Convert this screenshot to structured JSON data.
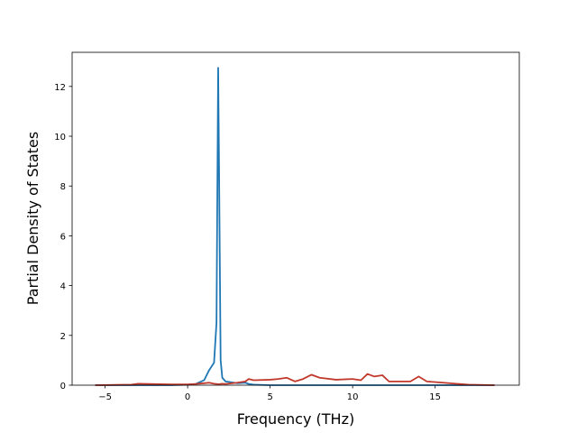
{
  "chart_data": {
    "type": "line",
    "x_label": "Frequency (THz)",
    "y_label": "Partial Density of States",
    "x": [
      -5.6,
      -3.4,
      -3,
      -1,
      0,
      0.5,
      1,
      1.3,
      1.6,
      1.75,
      1.85,
      1.9,
      2.0,
      2.1,
      2.3,
      3,
      3.5,
      3.7,
      4,
      5,
      5.5,
      6,
      6.5,
      7,
      7.5,
      8,
      9,
      10,
      10.5,
      10.9,
      11.3,
      11.8,
      12.2,
      13.5,
      14,
      14.5,
      15.5,
      17,
      18.6
    ],
    "series": [
      {
        "color": "#1f77b4",
        "values": [
          0,
          0,
          0,
          0,
          0.02,
          0.05,
          0.2,
          0.6,
          0.9,
          2.5,
          12.75,
          9,
          1,
          0.3,
          0.15,
          0.08,
          0.1,
          0.05,
          0.02,
          0,
          0,
          0,
          0,
          0,
          0,
          0,
          0,
          0,
          0,
          0,
          0,
          0,
          0,
          0,
          0,
          0,
          0,
          0,
          0
        ]
      },
      {
        "color": "#c0392b",
        "values": [
          0,
          0.02,
          0.06,
          0.03,
          0.03,
          0.05,
          0.08,
          0.1,
          0.06,
          0.05,
          0.04,
          0.04,
          0.05,
          0.06,
          0.05,
          0.1,
          0.15,
          0.25,
          0.2,
          0.22,
          0.25,
          0.3,
          0.15,
          0.25,
          0.42,
          0.3,
          0.22,
          0.25,
          0.2,
          0.45,
          0.35,
          0.4,
          0.15,
          0.15,
          0.35,
          0.15,
          0.1,
          0.02,
          0
        ]
      }
    ],
    "xlim": [
      -7.0,
      20.1
    ],
    "ylim": [
      0,
      13.37
    ],
    "xticks": [
      {
        "value": -5,
        "label": "−5"
      },
      0,
      5,
      10,
      15
    ],
    "yticks": [
      0,
      2,
      4,
      6,
      8,
      10,
      12
    ]
  }
}
